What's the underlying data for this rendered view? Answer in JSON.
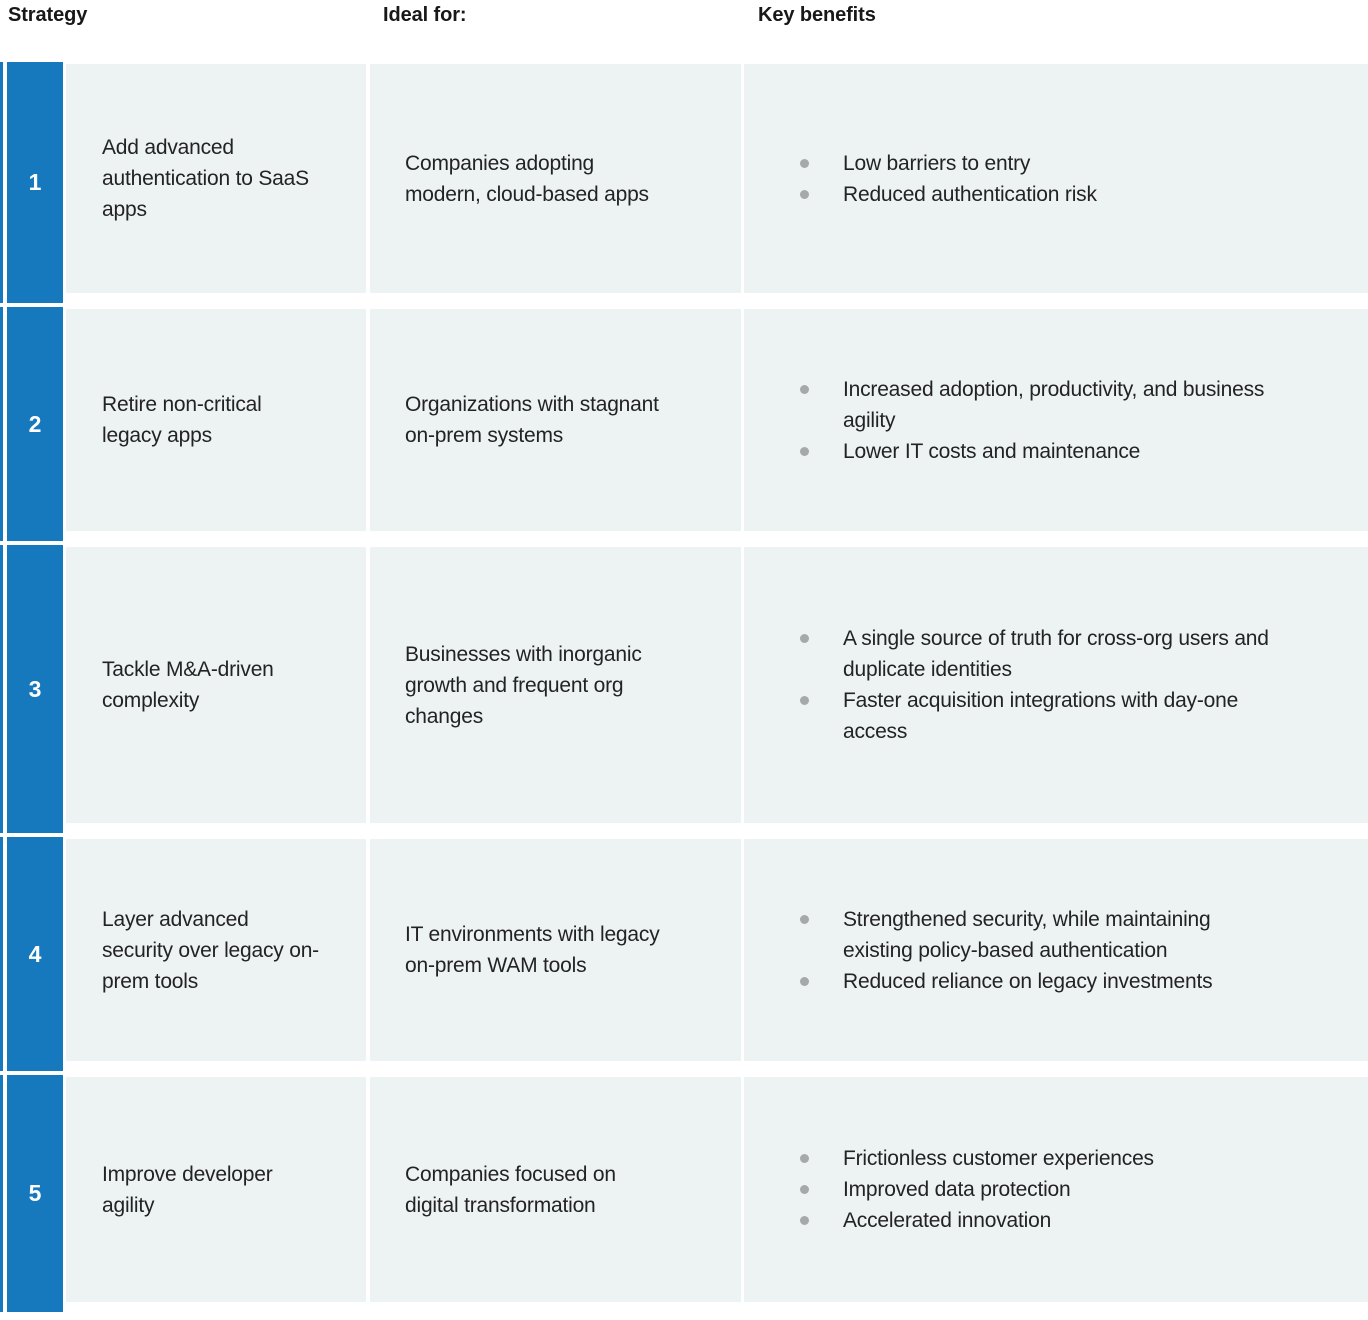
{
  "header": {
    "strategy": "Strategy",
    "ideal_for": "Ideal for:",
    "key_benefits": "Key benefits"
  },
  "colors": {
    "accent_blue": "#1779BD",
    "cell_background": "#EDF2F3",
    "bullet_gray": "#A6A9AB",
    "number_text": "#FFFFFF",
    "body_text": "#232326"
  },
  "rows": [
    {
      "number": "1",
      "strategy": "Add advanced authentication to SaaS apps",
      "ideal_for": "Companies adopting modern, cloud-based apps",
      "benefits": [
        "Low barriers to entry",
        "Reduced authentication risk"
      ]
    },
    {
      "number": "2",
      "strategy": "Retire non-critical legacy apps",
      "ideal_for": "Organizations with stagnant on-prem systems",
      "benefits": [
        "Increased adoption, productivity, and business agility",
        "Lower IT costs and maintenance"
      ]
    },
    {
      "number": "3",
      "strategy": "Tackle M&A-driven complexity",
      "ideal_for": "Businesses with inorganic growth and frequent org changes",
      "benefits": [
        "A single source of truth for cross-org users and duplicate identities",
        "Faster acquisition integrations with day-one access"
      ]
    },
    {
      "number": "4",
      "strategy": "Layer advanced security over legacy on-prem tools",
      "ideal_for": "IT environments with legacy on-prem WAM tools",
      "benefits": [
        "Strengthened security, while maintaining existing policy-based authentication",
        "Reduced reliance on legacy investments"
      ]
    },
    {
      "number": "5",
      "strategy": "Improve developer agility",
      "ideal_for": "Companies focused on digital transformation",
      "benefits": [
        "Frictionless customer experiences",
        "Improved data protection",
        "Accelerated innovation"
      ]
    }
  ]
}
